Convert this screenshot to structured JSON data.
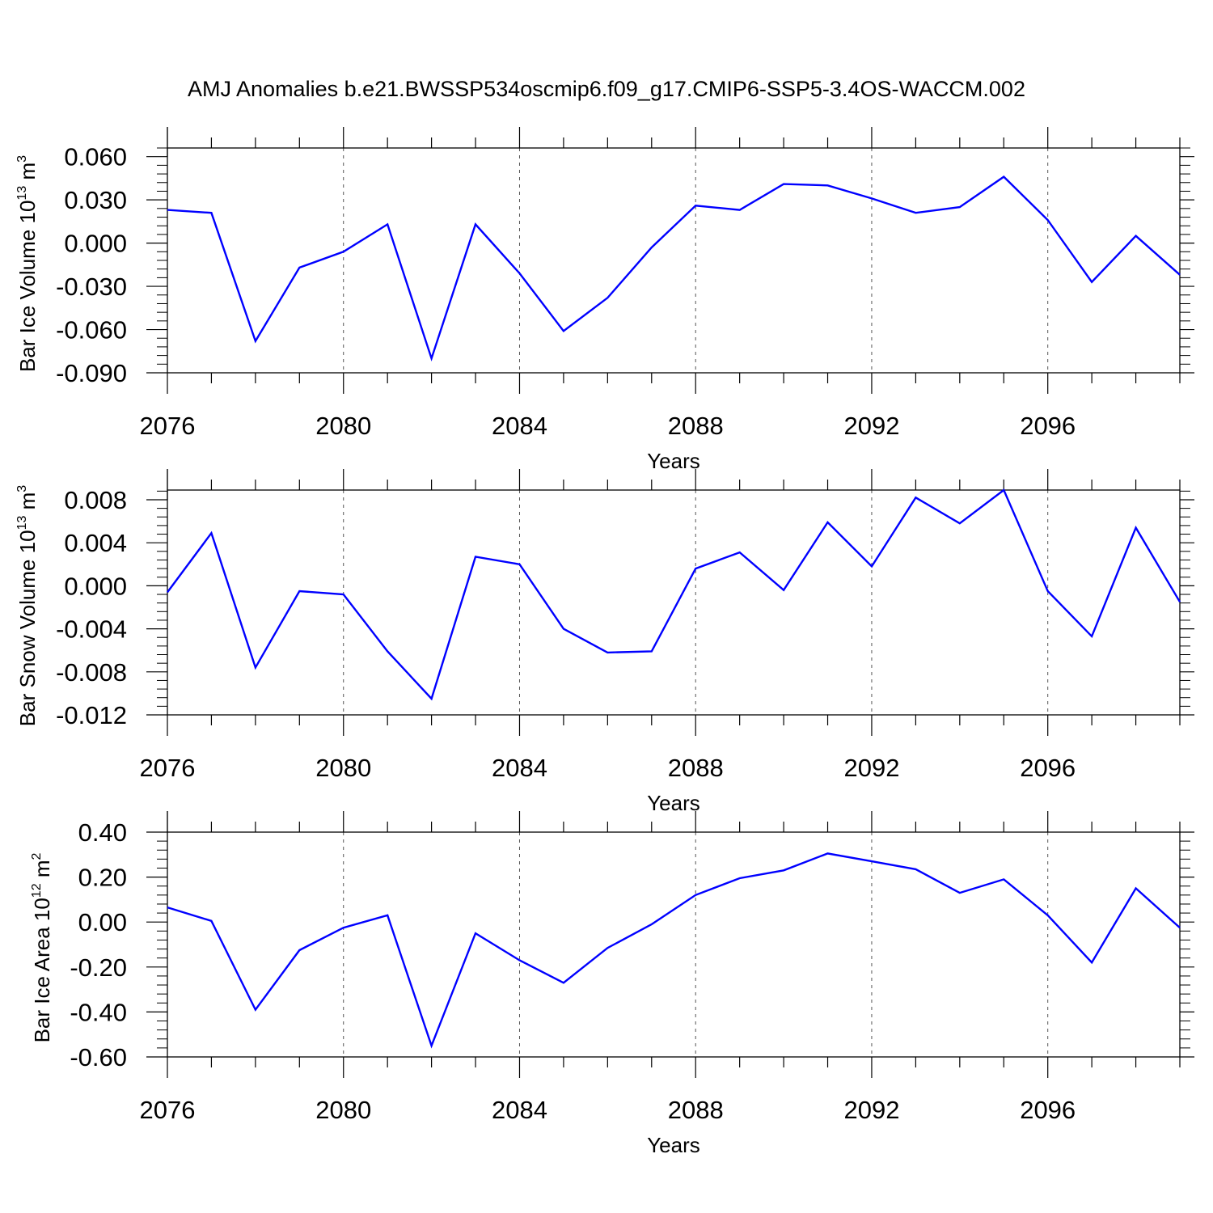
{
  "title": "AMJ Anomalies b.e21.BWSSP534oscmip6.f09_g17.CMIP6-SSP5-3.4OS-WACCM.002",
  "chart_data": [
    {
      "type": "line",
      "ylabel": {
        "base": "Bar Ice Volume 10",
        "exp": "13",
        "unit": " m",
        "unit_exp": "3"
      },
      "xlabel": "Years",
      "xlim": [
        2076,
        2099
      ],
      "ylim": [
        -0.09,
        0.066
      ],
      "x_ticks": [
        2076,
        2080,
        2084,
        2088,
        2092,
        2096
      ],
      "x_tick_labels": [
        "2076",
        "2080",
        "2084",
        "2088",
        "2092",
        "2096"
      ],
      "y_ticks": [
        -0.09,
        -0.06,
        -0.03,
        0.0,
        0.03,
        0.06
      ],
      "y_tick_labels": [
        "-0.090",
        "-0.060",
        "-0.030",
        "0.000",
        "0.030",
        "0.060"
      ],
      "grid": "vertical dashed at major x ticks",
      "line_color": "#0000ff",
      "x": [
        2076,
        2077,
        2078,
        2079,
        2080,
        2081,
        2082,
        2083,
        2084,
        2085,
        2086,
        2087,
        2088,
        2089,
        2090,
        2091,
        2092,
        2093,
        2094,
        2095,
        2096,
        2097,
        2098,
        2099
      ],
      "values": [
        0.023,
        0.021,
        -0.068,
        -0.017,
        -0.006,
        0.013,
        -0.08,
        0.013,
        -0.021,
        -0.061,
        -0.038,
        -0.003,
        0.026,
        0.023,
        0.041,
        0.04,
        0.031,
        0.021,
        0.025,
        0.046,
        0.016,
        -0.027,
        0.005,
        -0.022
      ]
    },
    {
      "type": "line",
      "ylabel": {
        "base": "Bar Snow Volume 10",
        "exp": "13",
        "unit": " m",
        "unit_exp": "3"
      },
      "xlabel": "Years",
      "xlim": [
        2076,
        2099
      ],
      "ylim": [
        -0.012,
        0.0089
      ],
      "x_ticks": [
        2076,
        2080,
        2084,
        2088,
        2092,
        2096
      ],
      "x_tick_labels": [
        "2076",
        "2080",
        "2084",
        "2088",
        "2092",
        "2096"
      ],
      "y_ticks": [
        -0.012,
        -0.008,
        -0.004,
        0.0,
        0.004,
        0.008
      ],
      "y_tick_labels": [
        "-0.012",
        "-0.008",
        "-0.004",
        "0.000",
        "0.004",
        "0.008"
      ],
      "grid": "vertical dashed at major x ticks",
      "line_color": "#0000ff",
      "x": [
        2076,
        2077,
        2078,
        2079,
        2080,
        2081,
        2082,
        2083,
        2084,
        2085,
        2086,
        2087,
        2088,
        2089,
        2090,
        2091,
        2092,
        2093,
        2094,
        2095,
        2096,
        2097,
        2098,
        2099
      ],
      "values": [
        -0.0006,
        0.0049,
        -0.0076,
        -0.0005,
        -0.0008,
        -0.0061,
        -0.0105,
        0.0027,
        0.002,
        -0.004,
        -0.0062,
        -0.0061,
        0.0016,
        0.0031,
        -0.0004,
        0.0059,
        0.0018,
        0.0082,
        0.0058,
        0.0089,
        -0.0005,
        -0.0047,
        0.0054,
        -0.0015
      ]
    },
    {
      "type": "line",
      "ylabel": {
        "base": "Bar Ice Area 10",
        "exp": "12",
        "unit": " m",
        "unit_exp": "2"
      },
      "xlabel": "Years",
      "xlim": [
        2076,
        2099
      ],
      "ylim": [
        -0.6,
        0.4
      ],
      "x_ticks": [
        2076,
        2080,
        2084,
        2088,
        2092,
        2096
      ],
      "x_tick_labels": [
        "2076",
        "2080",
        "2084",
        "2088",
        "2092",
        "2096"
      ],
      "y_ticks": [
        -0.6,
        -0.4,
        -0.2,
        0.0,
        0.2,
        0.4
      ],
      "y_tick_labels": [
        "-0.60",
        "-0.40",
        "-0.20",
        "0.00",
        "0.20",
        "0.40"
      ],
      "grid": "vertical dashed at major x ticks",
      "line_color": "#0000ff",
      "x": [
        2076,
        2077,
        2078,
        2079,
        2080,
        2081,
        2082,
        2083,
        2084,
        2085,
        2086,
        2087,
        2088,
        2089,
        2090,
        2091,
        2092,
        2093,
        2094,
        2095,
        2096,
        2097,
        2098,
        2099
      ],
      "values": [
        0.065,
        0.005,
        -0.39,
        -0.125,
        -0.025,
        0.03,
        -0.55,
        -0.05,
        -0.17,
        -0.27,
        -0.115,
        -0.01,
        0.12,
        0.195,
        0.23,
        0.305,
        0.27,
        0.235,
        0.13,
        0.19,
        0.03,
        -0.18,
        0.15,
        -0.025
      ]
    }
  ]
}
